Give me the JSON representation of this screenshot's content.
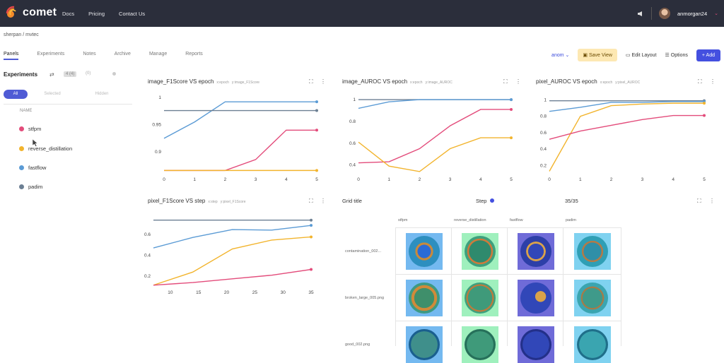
{
  "app": {
    "name": "comet"
  },
  "topnav": [
    "Docs",
    "Pricing",
    "Contact Us"
  ],
  "user": {
    "name": "anmorgan24"
  },
  "breadcrumb": "sherpan / mvtec",
  "tabs": [
    "Panels",
    "Experiments",
    "Notes",
    "Archive",
    "Manage",
    "Reports"
  ],
  "controls": {
    "view_select": "anom",
    "save_view": "Save View",
    "edit_layout": "Edit Layout",
    "options": "Options",
    "add": "+ Add"
  },
  "left": {
    "title": "Experiments",
    "chip1": "4 (4)",
    "chip2": "(0)",
    "filters": [
      "All",
      "Selected",
      "Hidden"
    ],
    "name_header": "NAME",
    "experiments": [
      {
        "name": "stfpm",
        "color": "#e34c7b"
      },
      {
        "name": "reverse_distillation",
        "color": "#f2b42d"
      },
      {
        "name": "fastflow",
        "color": "#5b9bd5"
      },
      {
        "name": "padim",
        "color": "#6c7f93"
      }
    ]
  },
  "panels": [
    {
      "title": "image_F1Score VS epoch",
      "xtag": "x:epoch",
      "ytag": "y:image_F1Score"
    },
    {
      "title": "image_AUROC VS epoch",
      "xtag": "x:epoch",
      "ytag": "y:image_AUROC"
    },
    {
      "title": "pixel_AUROC VS epoch",
      "xtag": "x:epoch",
      "ytag": "y:pixel_AUROC"
    },
    {
      "title": "pixel_F1Score VS step",
      "xtag": "x:step",
      "ytag": "y:pixel_F1Score"
    }
  ],
  "grid": {
    "title": "Grid title",
    "step_label": "Step",
    "count": "35/35",
    "columns": [
      "stfpm",
      "reverse_distillation",
      "fastflow",
      "padim"
    ],
    "rows": [
      "contamination_002...",
      "broken_large_005.png",
      "good_002.png"
    ]
  },
  "chart_data": [
    {
      "type": "line",
      "title": "image_F1Score VS epoch",
      "x": [
        0,
        1,
        2,
        3,
        4,
        5
      ],
      "ylim": [
        0.86,
        1.0
      ],
      "xticks": [
        "0",
        "1",
        "2",
        "3",
        "4",
        "5"
      ],
      "yticks": [
        "1",
        "0.95",
        "0.9"
      ],
      "series": [
        {
          "color": "#5b9bd5",
          "values": [
            0.925,
            0.955,
            0.992,
            0.992,
            0.992,
            0.992
          ]
        },
        {
          "color": "#6c7f93",
          "values": [
            0.976,
            0.976,
            0.976,
            0.976,
            0.976,
            0.976
          ]
        },
        {
          "color": "#e34c7b",
          "values": [
            0.866,
            0.866,
            0.866,
            0.886,
            0.94,
            0.94
          ]
        },
        {
          "color": "#f2b42d",
          "values": [
            0.866,
            0.866,
            0.866,
            0.866,
            0.866,
            0.866
          ]
        }
      ]
    },
    {
      "type": "line",
      "title": "image_AUROC VS epoch",
      "x": [
        0,
        1,
        2,
        3,
        4,
        5
      ],
      "ylim": [
        0.32,
        1.02
      ],
      "xticks": [
        "0",
        "1",
        "2",
        "3",
        "4",
        "5"
      ],
      "yticks": [
        "1",
        "0.8",
        "0.6",
        "0.4"
      ],
      "series": [
        {
          "color": "#6c7f93",
          "values": [
            1.0,
            1.0,
            1.0,
            1.0,
            1.0,
            1.0
          ]
        },
        {
          "color": "#5b9bd5",
          "values": [
            0.92,
            0.98,
            1.0,
            1.0,
            1.0,
            1.0
          ]
        },
        {
          "color": "#e34c7b",
          "values": [
            0.42,
            0.43,
            0.55,
            0.76,
            0.91,
            0.91
          ]
        },
        {
          "color": "#f2b42d",
          "values": [
            0.61,
            0.39,
            0.34,
            0.55,
            0.65,
            0.65
          ]
        }
      ]
    },
    {
      "type": "line",
      "title": "pixel_AUROC VS epoch",
      "x": [
        0,
        1,
        2,
        3,
        4,
        5
      ],
      "ylim": [
        0.1,
        1.03
      ],
      "xticks": [
        "0",
        "1",
        "2",
        "3",
        "4",
        "5"
      ],
      "yticks": [
        "1",
        "0.8",
        "0.6",
        "0.4",
        "0.2"
      ],
      "series": [
        {
          "color": "#6c7f93",
          "values": [
            0.99,
            0.99,
            0.99,
            0.99,
            0.99,
            0.99
          ]
        },
        {
          "color": "#5b9bd5",
          "values": [
            0.86,
            0.91,
            0.97,
            0.97,
            0.98,
            0.98
          ]
        },
        {
          "color": "#f2b42d",
          "values": [
            0.13,
            0.8,
            0.93,
            0.95,
            0.96,
            0.96
          ]
        },
        {
          "color": "#e34c7b",
          "values": [
            0.52,
            0.62,
            0.69,
            0.76,
            0.81,
            0.81
          ]
        }
      ]
    },
    {
      "type": "line",
      "title": "pixel_F1Score VS step",
      "x": [
        7,
        14,
        21,
        28,
        35
      ],
      "xlim": [
        7,
        36
      ],
      "ylim": [
        0.1,
        0.76
      ],
      "xticks": [
        "10",
        "15",
        "20",
        "25",
        "30",
        "35"
      ],
      "ytick_values": [
        0.6,
        0.4,
        0.2
      ],
      "yticks": [
        "0.6",
        "0.4",
        "0.2"
      ],
      "series": [
        {
          "color": "#6c7f93",
          "values": [
            0.735,
            0.735,
            0.735,
            0.735,
            0.735
          ]
        },
        {
          "color": "#5b9bd5",
          "values": [
            0.47,
            0.57,
            0.645,
            0.64,
            0.685
          ]
        },
        {
          "color": "#f2b42d",
          "values": [
            0.115,
            0.24,
            0.46,
            0.545,
            0.575
          ]
        },
        {
          "color": "#e34c7b",
          "values": [
            0.115,
            0.14,
            0.175,
            0.21,
            0.265
          ]
        }
      ]
    }
  ]
}
